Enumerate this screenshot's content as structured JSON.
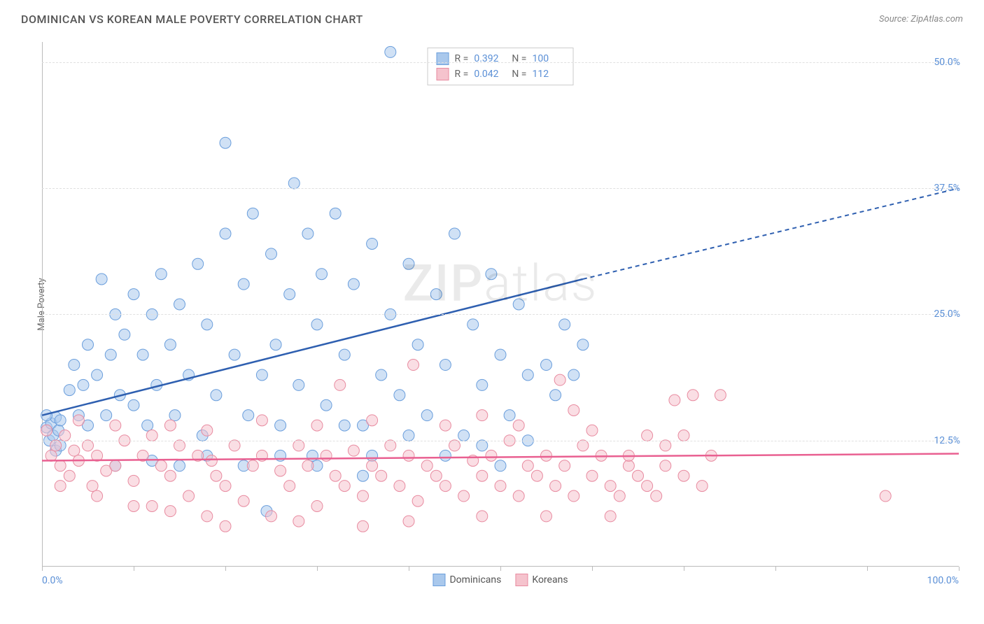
{
  "title": "DOMINICAN VS KOREAN MALE POVERTY CORRELATION CHART",
  "source": "Source: ZipAtlas.com",
  "y_axis_label": "Male Poverty",
  "watermark_bold": "ZIP",
  "watermark_light": "atlas",
  "chart": {
    "type": "scatter",
    "xlim": [
      0,
      100
    ],
    "ylim": [
      0,
      52
    ],
    "x_ticks": [
      0,
      10,
      20,
      30,
      40,
      50,
      60,
      70,
      80,
      90,
      100
    ],
    "x_tick_labels": {
      "0": "0.0%",
      "100": "100.0%"
    },
    "y_gridlines": [
      12.5,
      25.0,
      37.5,
      50.0
    ],
    "y_tick_labels": [
      "12.5%",
      "25.0%",
      "37.5%",
      "50.0%"
    ],
    "grid_color": "#e0e0e0",
    "axis_color": "#bbbbbb",
    "tick_label_color": "#5a8fd6",
    "background_color": "#ffffff",
    "marker_radius": 8,
    "marker_opacity": 0.55,
    "trend_line_width": 2.5,
    "series": [
      {
        "name": "Dominicans",
        "color_fill": "#a9c8ec",
        "color_stroke": "#6a9edc",
        "trend_color": "#2e5fb0",
        "R": "0.392",
        "N": "100",
        "trend_start": [
          0,
          15.0
        ],
        "trend_end_solid": [
          59,
          28.5
        ],
        "trend_end_dash": [
          100,
          37.5
        ],
        "points": [
          [
            0.5,
            13.8
          ],
          [
            0.8,
            12.5
          ],
          [
            1.0,
            14.2
          ],
          [
            1.2,
            13.0
          ],
          [
            1.5,
            14.8
          ],
          [
            1.5,
            11.5
          ],
          [
            0.5,
            15.0
          ],
          [
            1.8,
            13.5
          ],
          [
            2.0,
            14.5
          ],
          [
            2.0,
            12.0
          ],
          [
            3.0,
            17.5
          ],
          [
            3.5,
            20.0
          ],
          [
            4.0,
            15.0
          ],
          [
            4.5,
            18.0
          ],
          [
            5.0,
            22.0
          ],
          [
            5.0,
            14.0
          ],
          [
            6.0,
            19.0
          ],
          [
            6.5,
            28.5
          ],
          [
            7.0,
            15.0
          ],
          [
            7.5,
            21.0
          ],
          [
            8.0,
            25.0
          ],
          [
            8.5,
            17.0
          ],
          [
            9.0,
            23.0
          ],
          [
            10.0,
            16.0
          ],
          [
            10.0,
            27.0
          ],
          [
            11.0,
            21.0
          ],
          [
            11.5,
            14.0
          ],
          [
            12.0,
            25.0
          ],
          [
            12.5,
            18.0
          ],
          [
            13.0,
            29.0
          ],
          [
            14.0,
            22.0
          ],
          [
            14.5,
            15.0
          ],
          [
            15.0,
            26.0
          ],
          [
            16.0,
            19.0
          ],
          [
            17.0,
            30.0
          ],
          [
            17.5,
            13.0
          ],
          [
            18.0,
            24.0
          ],
          [
            19.0,
            17.0
          ],
          [
            20.0,
            33.0
          ],
          [
            20.0,
            42.0
          ],
          [
            21.0,
            21.0
          ],
          [
            22.0,
            28.0
          ],
          [
            22.5,
            15.0
          ],
          [
            23.0,
            35.0
          ],
          [
            24.0,
            19.0
          ],
          [
            24.5,
            5.5
          ],
          [
            25.0,
            31.0
          ],
          [
            25.5,
            22.0
          ],
          [
            26.0,
            14.0
          ],
          [
            27.0,
            27.0
          ],
          [
            27.5,
            38.0
          ],
          [
            28.0,
            18.0
          ],
          [
            29.0,
            33.0
          ],
          [
            29.5,
            11.0
          ],
          [
            30.0,
            24.0
          ],
          [
            30.5,
            29.0
          ],
          [
            31.0,
            16.0
          ],
          [
            32.0,
            35.0
          ],
          [
            33.0,
            21.0
          ],
          [
            34.0,
            28.0
          ],
          [
            35.0,
            14.0
          ],
          [
            36.0,
            32.0
          ],
          [
            37.0,
            19.0
          ],
          [
            38.0,
            25.0
          ],
          [
            38.0,
            51.0
          ],
          [
            39.0,
            17.0
          ],
          [
            40.0,
            30.0
          ],
          [
            41.0,
            22.0
          ],
          [
            42.0,
            15.0
          ],
          [
            43.0,
            27.0
          ],
          [
            44.0,
            20.0
          ],
          [
            45.0,
            33.0
          ],
          [
            46.0,
            13.0
          ],
          [
            47.0,
            24.0
          ],
          [
            48.0,
            18.0
          ],
          [
            49.0,
            29.0
          ],
          [
            50.0,
            21.0
          ],
          [
            51.0,
            15.0
          ],
          [
            52.0,
            26.0
          ],
          [
            53.0,
            19.0
          ],
          [
            53.0,
            12.5
          ],
          [
            55.0,
            20.0
          ],
          [
            56.0,
            17.0
          ],
          [
            57.0,
            24.0
          ],
          [
            58.0,
            19.0
          ],
          [
            59.0,
            22.0
          ],
          [
            33.0,
            14.0
          ],
          [
            36.0,
            11.0
          ],
          [
            40.0,
            13.0
          ],
          [
            12.0,
            10.5
          ],
          [
            18.0,
            11.0
          ],
          [
            22.0,
            10.0
          ],
          [
            26.0,
            11.0
          ],
          [
            44.0,
            11.0
          ],
          [
            48.0,
            12.0
          ],
          [
            8.0,
            10.0
          ],
          [
            15.0,
            10.0
          ],
          [
            30.0,
            10.0
          ],
          [
            35.0,
            9.0
          ],
          [
            50.0,
            10.0
          ]
        ]
      },
      {
        "name": "Koreans",
        "color_fill": "#f5c3cd",
        "color_stroke": "#e88ba0",
        "trend_color": "#e96091",
        "R": "0.042",
        "N": "112",
        "trend_start": [
          0,
          10.5
        ],
        "trend_end_solid": [
          100,
          11.2
        ],
        "trend_end_dash": [
          100,
          11.2
        ],
        "points": [
          [
            0.5,
            13.5
          ],
          [
            1.0,
            11.0
          ],
          [
            1.5,
            12.0
          ],
          [
            2.0,
            10.0
          ],
          [
            2.5,
            13.0
          ],
          [
            3.0,
            9.0
          ],
          [
            3.5,
            11.5
          ],
          [
            4.0,
            10.5
          ],
          [
            5.0,
            12.0
          ],
          [
            5.5,
            8.0
          ],
          [
            6.0,
            11.0
          ],
          [
            7.0,
            9.5
          ],
          [
            8.0,
            10.0
          ],
          [
            9.0,
            12.5
          ],
          [
            10.0,
            8.5
          ],
          [
            11.0,
            11.0
          ],
          [
            12.0,
            6.0
          ],
          [
            13.0,
            10.0
          ],
          [
            14.0,
            9.0
          ],
          [
            15.0,
            12.0
          ],
          [
            16.0,
            7.0
          ],
          [
            17.0,
            11.0
          ],
          [
            18.0,
            5.0
          ],
          [
            18.5,
            10.5
          ],
          [
            19.0,
            9.0
          ],
          [
            20.0,
            8.0
          ],
          [
            21.0,
            12.0
          ],
          [
            22.0,
            6.5
          ],
          [
            23.0,
            10.0
          ],
          [
            24.0,
            11.0
          ],
          [
            25.0,
            5.0
          ],
          [
            26.0,
            9.5
          ],
          [
            27.0,
            8.0
          ],
          [
            28.0,
            12.0
          ],
          [
            29.0,
            10.0
          ],
          [
            30.0,
            6.0
          ],
          [
            31.0,
            11.0
          ],
          [
            32.0,
            9.0
          ],
          [
            32.5,
            18.0
          ],
          [
            33.0,
            8.0
          ],
          [
            34.0,
            11.5
          ],
          [
            35.0,
            7.0
          ],
          [
            36.0,
            10.0
          ],
          [
            37.0,
            9.0
          ],
          [
            38.0,
            12.0
          ],
          [
            39.0,
            8.0
          ],
          [
            40.0,
            11.0
          ],
          [
            40.5,
            20.0
          ],
          [
            41.0,
            6.5
          ],
          [
            42.0,
            10.0
          ],
          [
            43.0,
            9.0
          ],
          [
            44.0,
            8.0
          ],
          [
            45.0,
            12.0
          ],
          [
            46.0,
            7.0
          ],
          [
            47.0,
            10.5
          ],
          [
            48.0,
            9.0
          ],
          [
            49.0,
            11.0
          ],
          [
            50.0,
            8.0
          ],
          [
            51.0,
            12.5
          ],
          [
            52.0,
            7.0
          ],
          [
            53.0,
            10.0
          ],
          [
            54.0,
            9.0
          ],
          [
            55.0,
            11.0
          ],
          [
            56.0,
            8.0
          ],
          [
            56.5,
            18.5
          ],
          [
            57.0,
            10.0
          ],
          [
            58.0,
            7.0
          ],
          [
            59.0,
            12.0
          ],
          [
            60.0,
            9.0
          ],
          [
            61.0,
            11.0
          ],
          [
            62.0,
            8.0
          ],
          [
            63.0,
            7.0
          ],
          [
            64.0,
            10.0
          ],
          [
            65.0,
            9.0
          ],
          [
            66.0,
            8.0
          ],
          [
            67.0,
            7.0
          ],
          [
            68.0,
            10.0
          ],
          [
            69.0,
            16.5
          ],
          [
            70.0,
            9.0
          ],
          [
            71.0,
            17.0
          ],
          [
            72.0,
            8.0
          ],
          [
            73.0,
            11.0
          ],
          [
            74.0,
            17.0
          ],
          [
            92.0,
            7.0
          ],
          [
            40.0,
            4.5
          ],
          [
            20.0,
            4.0
          ],
          [
            28.0,
            4.5
          ],
          [
            35.0,
            4.0
          ],
          [
            48.0,
            5.0
          ],
          [
            55.0,
            5.0
          ],
          [
            62.0,
            5.0
          ],
          [
            14.0,
            14.0
          ],
          [
            24.0,
            14.5
          ],
          [
            30.0,
            14.0
          ],
          [
            36.0,
            14.5
          ],
          [
            44.0,
            14.0
          ],
          [
            52.0,
            14.0
          ],
          [
            60.0,
            13.5
          ],
          [
            66.0,
            13.0
          ],
          [
            70.0,
            13.0
          ],
          [
            8.0,
            14.0
          ],
          [
            4.0,
            14.5
          ],
          [
            12.0,
            13.0
          ],
          [
            18.0,
            13.5
          ],
          [
            2.0,
            8.0
          ],
          [
            6.0,
            7.0
          ],
          [
            10.0,
            6.0
          ],
          [
            14.0,
            5.5
          ],
          [
            48.0,
            15.0
          ],
          [
            58.0,
            15.5
          ],
          [
            64.0,
            11.0
          ],
          [
            68.0,
            12.0
          ]
        ]
      }
    ]
  },
  "legend_top": {
    "R_label": "R =",
    "N_label": "N ="
  },
  "legend_bottom": [
    {
      "label": "Dominicans",
      "fill": "#a9c8ec",
      "stroke": "#6a9edc"
    },
    {
      "label": "Koreans",
      "fill": "#f5c3cd",
      "stroke": "#e88ba0"
    }
  ]
}
